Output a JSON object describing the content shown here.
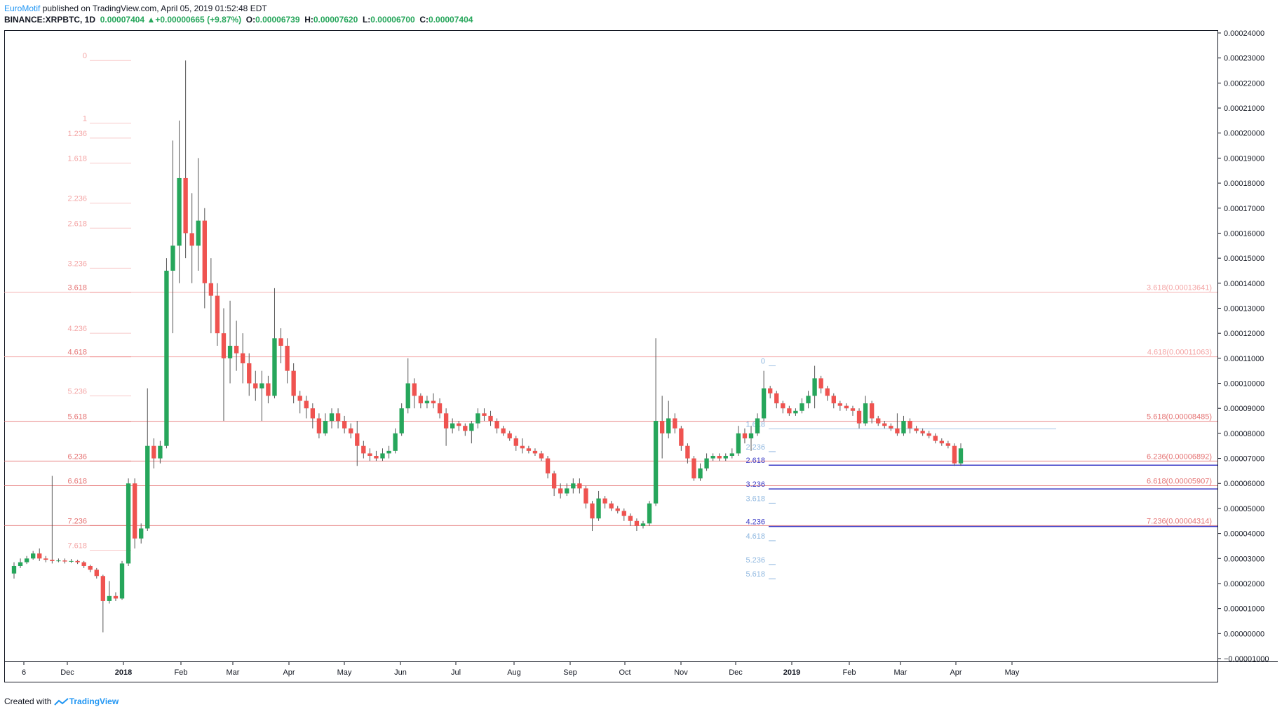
{
  "header": {
    "author": "EuroMotif",
    "published_text": "published on TradingView.com, April 05, 2019 01:52:48 EDT",
    "symbol": "BINANCE:XRPBTC, 1D",
    "last": "0.00007404",
    "change": "+0.00000665 (+9.87%)",
    "o_label": "O:",
    "o_value": "0.00006739",
    "h_label": "H:",
    "h_value": "0.00007620",
    "l_label": "L:",
    "l_value": "0.00006700",
    "c_label": "C:",
    "c_value": "0.00007404"
  },
  "footer": {
    "created_with": "Created with",
    "brand": "TradingView"
  },
  "colors": {
    "up": "#26a65b",
    "down": "#ef5350",
    "fib_left": "#f4a6a6",
    "fib_left_strong": "#e57373",
    "fib_blue": "#90b8e0",
    "fib_dark_blue": "#3d3dc7",
    "grid": "#e0e3eb",
    "axis_text": "#131722"
  },
  "chart_data": {
    "type": "candlestick",
    "y_axis_ticks": [
      "0.00024000",
      "0.00023000",
      "0.00022000",
      "0.00021000",
      "0.00020000",
      "0.00019000",
      "0.00018000",
      "0.00017000",
      "0.00016000",
      "0.00015000",
      "0.00014000",
      "0.00013000",
      "0.00012000",
      "0.00011000",
      "0.00010000",
      "0.00009000",
      "0.00008000",
      "0.00007000",
      "0.00006000",
      "0.00005000",
      "0.00004000",
      "0.00003000",
      "0.00002000",
      "0.00001000",
      "0.00000000",
      "−0.00001000"
    ],
    "ylim": [
      -1e-05,
      0.00024
    ],
    "x_axis_ticks": [
      "6",
      "Dec",
      "2018",
      "Feb",
      "Mar",
      "Apr",
      "May",
      "Jun",
      "Jul",
      "Aug",
      "Sep",
      "Oct",
      "Nov",
      "Dec",
      "2019",
      "Feb",
      "Mar",
      "Apr",
      "May"
    ],
    "fib_left": [
      {
        "label": "0",
        "value": 0.000229
      },
      {
        "label": "1",
        "value": 0.000204
      },
      {
        "label": "1.236",
        "value": 0.000198
      },
      {
        "label": "1.618",
        "value": 0.000188
      },
      {
        "label": "2.236",
        "value": 0.000172
      },
      {
        "label": "2.618",
        "value": 0.000162
      },
      {
        "label": "3.236",
        "value": 0.000146
      },
      {
        "label": "3.618",
        "value": 0.00013641
      },
      {
        "label": "4.236",
        "value": 0.00012
      },
      {
        "label": "4.618",
        "value": 0.00011063
      },
      {
        "label": "5.236",
        "value": 9.5e-05
      },
      {
        "label": "5.618",
        "value": 8.485e-05
      },
      {
        "label": "6.236",
        "value": 6.892e-05
      },
      {
        "label": "6.618",
        "value": 5.907e-05
      },
      {
        "label": "7.236",
        "value": 4.314e-05
      },
      {
        "label": "7.618",
        "value": 3.33e-05
      }
    ],
    "fib_right": [
      {
        "label": "3.618(0.00013641)",
        "value": 0.00013641
      },
      {
        "label": "4.618(0.00011063)",
        "value": 0.00011063
      },
      {
        "label": "5.618(0.00008485)",
        "value": 8.485e-05
      },
      {
        "label": "6.236(0.00006892)",
        "value": 6.892e-05
      },
      {
        "label": "6.618(0.00005907)",
        "value": 5.907e-05
      },
      {
        "label": "7.236(0.00004314)",
        "value": 4.314e-05
      }
    ],
    "fib_blue": [
      {
        "label": "0",
        "value": 0.000107
      },
      {
        "label": "1.618",
        "value": 8.18e-05
      },
      {
        "label": "2.236",
        "value": 7.27e-05
      },
      {
        "label": "2.618",
        "value": 6.73e-05
      },
      {
        "label": "3.236",
        "value": 5.78e-05
      },
      {
        "label": "3.618",
        "value": 5.21e-05
      },
      {
        "label": "4.236",
        "value": 4.28e-05
      },
      {
        "label": "4.618",
        "value": 3.71e-05
      },
      {
        "label": "5.236",
        "value": 2.76e-05
      },
      {
        "label": "5.618",
        "value": 2.19e-05
      }
    ],
    "candles": [
      [
        2.4e-05,
        2.7e-05,
        2.2e-05,
        2.85e-05
      ],
      [
        2.7e-05,
        2.85e-05,
        2.62e-05,
        3e-05
      ],
      [
        2.85e-05,
        3e-05,
        2.78e-05,
        3.1e-05
      ],
      [
        3e-05,
        3.2e-05,
        2.95e-05,
        3.3e-05
      ],
      [
        3.2e-05,
        3e-05,
        2.9e-05,
        3.4e-05
      ],
      [
        3e-05,
        2.95e-05,
        2.85e-05,
        3.1e-05
      ],
      [
        2.95e-05,
        2.9e-05,
        2.8e-05,
        6.3e-05
      ],
      [
        2.9e-05,
        2.92e-05,
        2.85e-05,
        3e-05
      ],
      [
        2.92e-05,
        2.88e-05,
        2.8e-05,
        3e-05
      ],
      [
        2.88e-05,
        2.9e-05,
        2.82e-05,
        2.98e-05
      ],
      [
        2.9e-05,
        2.85e-05,
        2.78e-05,
        2.95e-05
      ],
      [
        2.85e-05,
        2.7e-05,
        2.62e-05,
        2.9e-05
      ],
      [
        2.7e-05,
        2.55e-05,
        2.45e-05,
        2.75e-05
      ],
      [
        2.55e-05,
        2.3e-05,
        2.2e-05,
        2.62e-05
      ],
      [
        2.3e-05,
        1.3e-05,
        5e-07,
        2.35e-05
      ],
      [
        1.3e-05,
        1.5e-05,
        1.2e-05,
        2.1e-05
      ],
      [
        1.5e-05,
        1.4e-05,
        1.3e-05,
        1.65e-05
      ],
      [
        1.4e-05,
        2.8e-05,
        1.35e-05,
        2.9e-05
      ],
      [
        2.8e-05,
        6e-05,
        2.7e-05,
        6.2e-05
      ],
      [
        6e-05,
        3.8e-05,
        3.4e-05,
        6.2e-05
      ],
      [
        3.8e-05,
        4.2e-05,
        3.6e-05,
        4.4e-05
      ],
      [
        4.2e-05,
        7.5e-05,
        4.1e-05,
        9.8e-05
      ],
      [
        7.5e-05,
        7e-05,
        6.6e-05,
        7.8e-05
      ],
      [
        7e-05,
        7.5e-05,
        6.8e-05,
        7.7e-05
      ],
      [
        7.5e-05,
        0.000145,
        7.4e-05,
        0.00015
      ],
      [
        0.000145,
        0.000155,
        0.00012,
        0.000197
      ],
      [
        0.000155,
        0.000182,
        0.00014,
        0.000205
      ],
      [
        0.000182,
        0.00016,
        0.00015,
        0.000229
      ],
      [
        0.00016,
        0.000155,
        0.00014,
        0.000176
      ],
      [
        0.000155,
        0.000165,
        0.000145,
        0.00019
      ],
      [
        0.000165,
        0.00014,
        0.00013,
        0.00017
      ],
      [
        0.00014,
        0.000135,
        0.00012,
        0.00015
      ],
      [
        0.000135,
        0.00012,
        0.000115,
        0.00014
      ],
      [
        0.00012,
        0.00011,
        8.5e-05,
        0.00013
      ],
      [
        0.00011,
        0.000115,
        0.0001,
        0.000133
      ],
      [
        0.000115,
        0.000112,
        0.000105,
        0.000125
      ],
      [
        0.000112,
        0.000108,
        0.0001,
        0.00012
      ],
      [
        0.000108,
        0.0001,
        9.5e-05,
        0.000112
      ],
      [
        0.0001,
        9.8e-05,
        9.3e-05,
        0.000105
      ],
      [
        9.8e-05,
        0.0001,
        8.5e-05,
        0.000105
      ],
      [
        0.0001,
        9.5e-05,
        9.2e-05,
        0.000103
      ],
      [
        9.5e-05,
        0.000118,
        9.4e-05,
        0.000138
      ],
      [
        0.000118,
        0.000115,
        0.000108,
        0.000122
      ],
      [
        0.000115,
        0.000105,
        0.0001,
        0.000118
      ],
      [
        0.000105,
        9.5e-05,
        9.2e-05,
        0.000108
      ],
      [
        9.5e-05,
        9.3e-05,
        8.8e-05,
        9.7e-05
      ],
      [
        9.3e-05,
        9e-05,
        8.6e-05,
        9.5e-05
      ],
      [
        9e-05,
        8.6e-05,
        8.2e-05,
        9.2e-05
      ],
      [
        8.6e-05,
        8e-05,
        7.8e-05,
        8.8e-05
      ],
      [
        8e-05,
        8.5e-05,
        7.9e-05,
        8.8e-05
      ],
      [
        8.5e-05,
        8.8e-05,
        8.2e-05,
        9e-05
      ],
      [
        8.8e-05,
        8.5e-05,
        8.2e-05,
        9e-05
      ],
      [
        8.5e-05,
        8.2e-05,
        8e-05,
        8.7e-05
      ],
      [
        8.2e-05,
        8e-05,
        7.8e-05,
        8.4e-05
      ],
      [
        8e-05,
        7.5e-05,
        6.7e-05,
        8.5e-05
      ],
      [
        7.5e-05,
        7.2e-05,
        7e-05,
        7.7e-05
      ],
      [
        7.2e-05,
        7.1e-05,
        6.9e-05,
        7.4e-05
      ],
      [
        7.1e-05,
        7e-05,
        6.9e-05,
        7.3e-05
      ],
      [
        7e-05,
        7.2e-05,
        6.9e-05,
        7.4e-05
      ],
      [
        7.2e-05,
        7.3e-05,
        7e-05,
        7.5e-05
      ],
      [
        7.3e-05,
        8e-05,
        7.2e-05,
        8.2e-05
      ],
      [
        8e-05,
        9e-05,
        7.9e-05,
        9.2e-05
      ],
      [
        9e-05,
        0.0001,
        8.8e-05,
        0.00011
      ],
      [
        0.0001,
        9.5e-05,
        9e-05,
        0.000102
      ],
      [
        9.5e-05,
        9.2e-05,
        9e-05,
        9.6e-05
      ],
      [
        9.2e-05,
        9.3e-05,
        9e-05,
        9.5e-05
      ],
      [
        9.3e-05,
        9.2e-05,
        9e-05,
        9.6e-05
      ],
      [
        9.2e-05,
        8.8e-05,
        8.6e-05,
        9.4e-05
      ],
      [
        8.8e-05,
        8.2e-05,
        7.5e-05,
        9e-05
      ],
      [
        8.2e-05,
        8.4e-05,
        8e-05,
        8.6e-05
      ],
      [
        8.4e-05,
        8.3e-05,
        8.1e-05,
        8.5e-05
      ],
      [
        8.3e-05,
        8.1e-05,
        7.9e-05,
        8.4e-05
      ],
      [
        8.1e-05,
        8.4e-05,
        7.6e-05,
        8.5e-05
      ],
      [
        8.4e-05,
        8.8e-05,
        8.2e-05,
        9e-05
      ],
      [
        8.8e-05,
        8.7e-05,
        8.5e-05,
        9e-05
      ],
      [
        8.7e-05,
        8.5e-05,
        8.3e-05,
        8.9e-05
      ],
      [
        8.5e-05,
        8.2e-05,
        8e-05,
        8.6e-05
      ],
      [
        8.2e-05,
        8e-05,
        7.9e-05,
        8.3e-05
      ],
      [
        8e-05,
        7.8e-05,
        7.7e-05,
        8.1e-05
      ],
      [
        7.8e-05,
        7.5e-05,
        7.3e-05,
        7.9e-05
      ],
      [
        7.5e-05,
        7.4e-05,
        7.2e-05,
        7.8e-05
      ],
      [
        7.4e-05,
        7.3e-05,
        7.2e-05,
        7.5e-05
      ],
      [
        7.3e-05,
        7.2e-05,
        7.1e-05,
        7.4e-05
      ],
      [
        7.2e-05,
        7e-05,
        6.9e-05,
        7.3e-05
      ],
      [
        7e-05,
        6.4e-05,
        6.2e-05,
        7.1e-05
      ],
      [
        6.4e-05,
        5.8e-05,
        5.5e-05,
        6.5e-05
      ],
      [
        5.8e-05,
        5.6e-05,
        5.4e-05,
        6e-05
      ],
      [
        5.6e-05,
        5.8e-05,
        5.5e-05,
        6e-05
      ],
      [
        5.8e-05,
        6e-05,
        5.6e-05,
        6.2e-05
      ],
      [
        6e-05,
        5.8e-05,
        5.6e-05,
        6.2e-05
      ],
      [
        5.8e-05,
        5.2e-05,
        5e-05,
        5.9e-05
      ],
      [
        5.2e-05,
        4.6e-05,
        4.1e-05,
        5.3e-05
      ],
      [
        4.6e-05,
        5.4e-05,
        4.5e-05,
        5.7e-05
      ],
      [
        5.4e-05,
        5.2e-05,
        5e-05,
        5.5e-05
      ],
      [
        5.2e-05,
        5e-05,
        4.9e-05,
        5.3e-05
      ],
      [
        5e-05,
        4.9e-05,
        4.8e-05,
        5.1e-05
      ],
      [
        4.9e-05,
        4.7e-05,
        4.5e-05,
        5e-05
      ],
      [
        4.7e-05,
        4.5e-05,
        4.3e-05,
        4.8e-05
      ],
      [
        4.5e-05,
        4.3e-05,
        4.1e-05,
        4.6e-05
      ],
      [
        4.3e-05,
        4.4e-05,
        4.2e-05,
        4.5e-05
      ],
      [
        4.4e-05,
        5.2e-05,
        4.3e-05,
        5.3e-05
      ],
      [
        5.2e-05,
        8.5e-05,
        5.1e-05,
        0.000118
      ],
      [
        8.5e-05,
        8e-05,
        7e-05,
        9.5e-05
      ],
      [
        8e-05,
        8.6e-05,
        7.8e-05,
        9.3e-05
      ],
      [
        8.6e-05,
        8.2e-05,
        8e-05,
        8.8e-05
      ],
      [
        8.2e-05,
        7.5e-05,
        7.3e-05,
        8.3e-05
      ],
      [
        7.5e-05,
        7e-05,
        6.8e-05,
        7.6e-05
      ],
      [
        7e-05,
        6.2e-05,
        6.1e-05,
        7.1e-05
      ],
      [
        6.2e-05,
        6.6e-05,
        6.1e-05,
        6.8e-05
      ],
      [
        6.6e-05,
        7e-05,
        6.5e-05,
        7.2e-05
      ],
      [
        7e-05,
        7.1e-05,
        6.9e-05,
        7.2e-05
      ],
      [
        7.1e-05,
        7e-05,
        6.9e-05,
        7.2e-05
      ],
      [
        7e-05,
        7.1e-05,
        6.9e-05,
        7.2e-05
      ],
      [
        7.1e-05,
        7.2e-05,
        7e-05,
        7.4e-05
      ],
      [
        7.2e-05,
        8e-05,
        7.1e-05,
        8.3e-05
      ],
      [
        8e-05,
        7.8e-05,
        7.6e-05,
        8.2e-05
      ],
      [
        7.8e-05,
        8e-05,
        7.3e-05,
        8.3e-05
      ],
      [
        8e-05,
        8.6e-05,
        7.9e-05,
        8.8e-05
      ],
      [
        8.6e-05,
        9.8e-05,
        8.5e-05,
        0.000105
      ],
      [
        9.8e-05,
        9.6e-05,
        9.4e-05,
        9.9e-05
      ],
      [
        9.6e-05,
        9.2e-05,
        9e-05,
        9.7e-05
      ],
      [
        9.2e-05,
        9e-05,
        8.8e-05,
        9.3e-05
      ],
      [
        9e-05,
        8.8e-05,
        8.7e-05,
        9.1e-05
      ],
      [
        8.8e-05,
        8.9e-05,
        8.7e-05,
        9e-05
      ],
      [
        8.9e-05,
        9.2e-05,
        8.8e-05,
        9.4e-05
      ],
      [
        9.2e-05,
        9.5e-05,
        9e-05,
        9.7e-05
      ],
      [
        9.5e-05,
        0.000102,
        9e-05,
        0.000107
      ],
      [
        0.000102,
        9.8e-05,
        9.6e-05,
        0.000103
      ],
      [
        9.8e-05,
        9.5e-05,
        9.3e-05,
        9.9e-05
      ],
      [
        9.5e-05,
        9.2e-05,
        9e-05,
        9.6e-05
      ],
      [
        9.2e-05,
        9.1e-05,
        8.9e-05,
        9.3e-05
      ],
      [
        9.1e-05,
        9e-05,
        8.9e-05,
        9.2e-05
      ],
      [
        9e-05,
        8.9e-05,
        8.7e-05,
        9.1e-05
      ],
      [
        8.9e-05,
        8.4e-05,
        8.2e-05,
        9e-05
      ],
      [
        8.4e-05,
        9.2e-05,
        8.3e-05,
        9.5e-05
      ],
      [
        9.2e-05,
        8.6e-05,
        8.4e-05,
        9.3e-05
      ],
      [
        8.6e-05,
        8.4e-05,
        8.3e-05,
        8.7e-05
      ],
      [
        8.4e-05,
        8.3e-05,
        8.2e-05,
        8.5e-05
      ],
      [
        8.3e-05,
        8.2e-05,
        8.1e-05,
        8.4e-05
      ],
      [
        8.2e-05,
        8e-05,
        7.9e-05,
        8.8e-05
      ],
      [
        8e-05,
        8.5e-05,
        7.9e-05,
        8.7e-05
      ],
      [
        8.5e-05,
        8.2e-05,
        8e-05,
        8.6e-05
      ],
      [
        8.2e-05,
        8.1e-05,
        8e-05,
        8.3e-05
      ],
      [
        8.1e-05,
        8e-05,
        7.9e-05,
        8.2e-05
      ],
      [
        8e-05,
        7.9e-05,
        7.8e-05,
        8.1e-05
      ],
      [
        7.9e-05,
        7.7e-05,
        7.6e-05,
        8e-05
      ],
      [
        7.7e-05,
        7.6e-05,
        7.5e-05,
        7.8e-05
      ],
      [
        7.6e-05,
        7.5e-05,
        7.4e-05,
        7.7e-05
      ],
      [
        7.5e-05,
        6.8e-05,
        6.7e-05,
        7.6e-05
      ],
      [
        6.8e-05,
        7.4e-05,
        6.7e-05,
        7.6e-05
      ]
    ]
  }
}
